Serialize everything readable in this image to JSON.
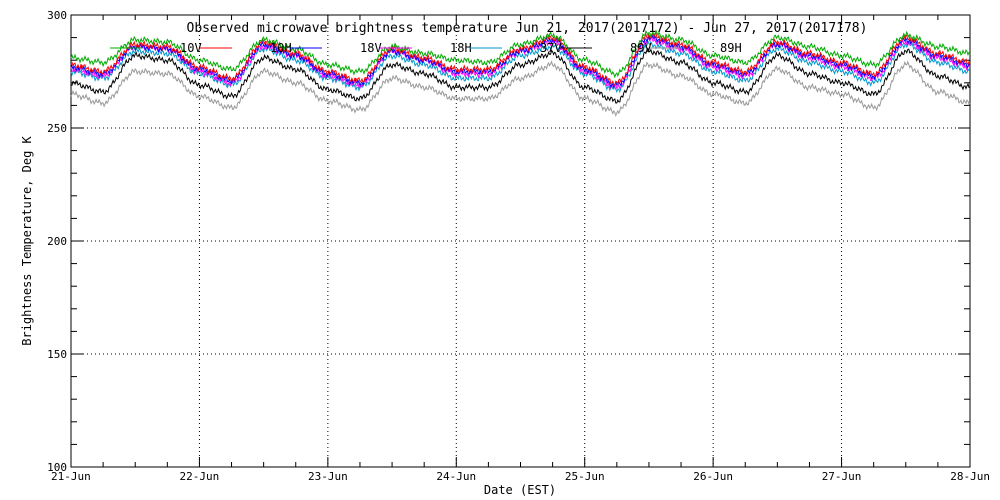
{
  "chart_data": {
    "type": "line",
    "title": "Observed microwave brightness temperature Jun 21, 2017(2017172) - Jun 27, 2017(2017178)",
    "xlabel": "Date (EST)",
    "ylabel": "Brightness Temperature, Deg K",
    "xlim": [
      "2017-06-21",
      "2017-06-28"
    ],
    "ylim": [
      100,
      300
    ],
    "x_ticks": [
      "21-Jun",
      "22-Jun",
      "23-Jun",
      "24-Jun",
      "25-Jun",
      "26-Jun",
      "27-Jun",
      "28-Jun"
    ],
    "y_ticks": [
      100,
      150,
      200,
      250,
      300
    ],
    "grid": true,
    "legend_position": "top",
    "x": [
      "2017-06-21 00:00",
      "2017-06-21 06:00",
      "2017-06-21 12:00",
      "2017-06-21 18:00",
      "2017-06-22 00:00",
      "2017-06-22 06:00",
      "2017-06-22 12:00",
      "2017-06-22 18:00",
      "2017-06-23 00:00",
      "2017-06-23 06:00",
      "2017-06-23 12:00",
      "2017-06-23 18:00",
      "2017-06-24 00:00",
      "2017-06-24 06:00",
      "2017-06-24 12:00",
      "2017-06-24 18:00",
      "2017-06-25 00:00",
      "2017-06-25 06:00",
      "2017-06-25 12:00",
      "2017-06-25 18:00",
      "2017-06-26 00:00",
      "2017-06-26 06:00",
      "2017-06-26 12:00",
      "2017-06-26 18:00",
      "2017-06-27 00:00",
      "2017-06-27 06:00",
      "2017-06-27 12:00",
      "2017-06-27 18:00",
      "2017-06-28 00:00"
    ],
    "series": [
      {
        "name": "10V",
        "color": "#00aa00",
        "values": [
          281,
          279,
          289,
          288,
          280,
          276,
          289,
          285,
          278,
          275,
          286,
          283,
          280,
          279,
          287,
          291,
          280,
          274,
          292,
          289,
          282,
          279,
          290,
          286,
          282,
          278,
          291,
          286,
          283
        ]
      },
      {
        "name": "10H",
        "color": "#ff0000",
        "values": [
          278,
          275,
          287,
          286,
          277,
          272,
          288,
          283,
          275,
          271,
          285,
          281,
          276,
          276,
          285,
          290,
          277,
          270,
          291,
          287,
          279,
          275,
          288,
          283,
          279,
          274,
          290,
          283,
          279
        ]
      },
      {
        "name": "18V",
        "color": "#0000ff",
        "values": [
          277,
          274,
          286,
          285,
          276,
          271,
          287,
          282,
          274,
          270,
          284,
          280,
          275,
          275,
          284,
          289,
          276,
          269,
          290,
          286,
          278,
          274,
          287,
          282,
          278,
          273,
          289,
          282,
          278
        ]
      },
      {
        "name": "18H",
        "color": "#ff00ff",
        "values": [
          276,
          273,
          286,
          285,
          275,
          270,
          286,
          282,
          273,
          269,
          284,
          280,
          274,
          274,
          284,
          288,
          275,
          268,
          289,
          285,
          277,
          273,
          287,
          281,
          277,
          272,
          288,
          281,
          277
        ]
      },
      {
        "name": "37V",
        "color": "#0099cc",
        "values": [
          275,
          272,
          284,
          283,
          274,
          269,
          285,
          280,
          272,
          268,
          282,
          278,
          272,
          272,
          282,
          286,
          274,
          267,
          287,
          283,
          275,
          271,
          285,
          279,
          275,
          270,
          287,
          279,
          275
        ]
      },
      {
        "name": "89V",
        "color": "#000000",
        "values": [
          270,
          266,
          282,
          280,
          269,
          264,
          281,
          276,
          267,
          263,
          278,
          274,
          268,
          268,
          278,
          283,
          268,
          262,
          284,
          279,
          270,
          266,
          282,
          274,
          270,
          265,
          284,
          273,
          268
        ]
      },
      {
        "name": "89H",
        "color": "#999999",
        "values": [
          265,
          261,
          275,
          274,
          264,
          259,
          275,
          270,
          262,
          258,
          272,
          268,
          263,
          263,
          272,
          278,
          263,
          257,
          278,
          273,
          265,
          261,
          276,
          268,
          265,
          259,
          278,
          266,
          261
        ]
      }
    ]
  }
}
